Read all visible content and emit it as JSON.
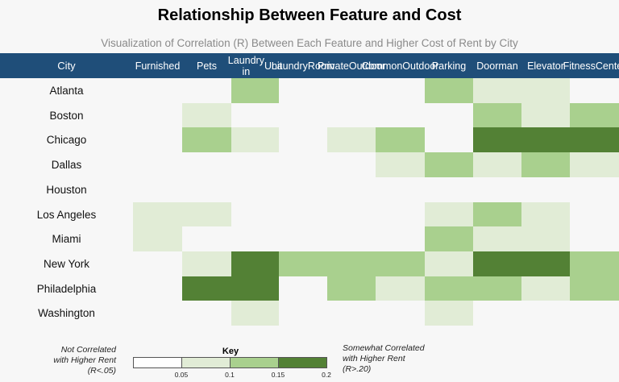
{
  "chart_data": {
    "type": "heatmap",
    "title": "Relationship Between Feature and Cost",
    "subtitle": "Visualization of Correlation (R) Between Each Feature and Higher Cost of Rent by City",
    "row_header": "City",
    "columns": [
      "Furnished",
      "Pets",
      "Laundry in Unit",
      "Laundry Room",
      "Private Outdoor",
      "Common Outdoor",
      "Parking",
      "Doorman",
      "Elevator",
      "Fitness Center"
    ],
    "rows": [
      "Atlanta",
      "Boston",
      "Chicago",
      "Dallas",
      "Houston",
      "Los Angeles",
      "Miami",
      "New York",
      "Philadelphia",
      "Washington"
    ],
    "values": [
      [
        0,
        0,
        2,
        0,
        0,
        0,
        2,
        1,
        1,
        0
      ],
      [
        0,
        1,
        0,
        0,
        0,
        0,
        0,
        2,
        1,
        2
      ],
      [
        0,
        2,
        1,
        0,
        1,
        2,
        0,
        3,
        3,
        3
      ],
      [
        0,
        0,
        0,
        0,
        0,
        1,
        2,
        1,
        2,
        1
      ],
      [
        0,
        0,
        0,
        0,
        0,
        0,
        0,
        0,
        0,
        0
      ],
      [
        1,
        1,
        0,
        0,
        0,
        0,
        1,
        2,
        1,
        0
      ],
      [
        1,
        0,
        0,
        0,
        0,
        0,
        2,
        1,
        1,
        0
      ],
      [
        0,
        1,
        3,
        2,
        2,
        2,
        1,
        3,
        3,
        2
      ],
      [
        0,
        3,
        3,
        0,
        2,
        1,
        2,
        2,
        1,
        2
      ],
      [
        0,
        0,
        1,
        0,
        0,
        0,
        1,
        0,
        0,
        0
      ]
    ],
    "value_meaning": "correlation bin index: 0 = R<.05, 1 = .05-.10, 2 = .10-.15, 3 = .15-.20+",
    "colors": [
      "#f7f7f7",
      "#e1ecd6",
      "#a9d08e",
      "#538135"
    ],
    "key": {
      "title": "Key",
      "ticks": [
        "0.05",
        "0.1",
        "0.15",
        "0.2"
      ],
      "left_note": [
        "Not Correlated",
        "with Higher Rent",
        "(R<.05)"
      ],
      "right_note": [
        "Somewhat Correlated",
        "with Higher Rent",
        "(R>.20)"
      ],
      "colors": [
        "#ffffff",
        "#e1ecd6",
        "#a9d08e",
        "#538135"
      ]
    },
    "header_color": "#1f4e79"
  }
}
